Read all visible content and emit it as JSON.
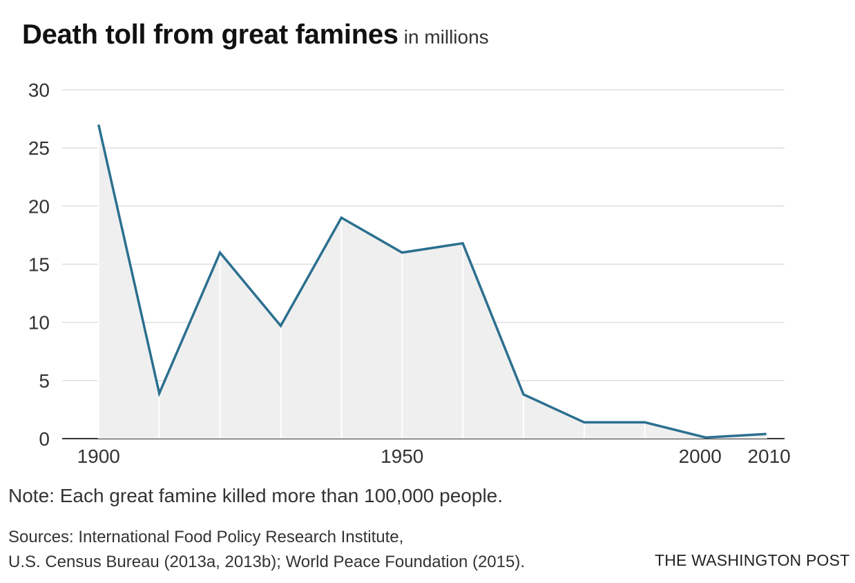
{
  "header": {
    "title": "Death toll from great famines",
    "subtitle": "in millions"
  },
  "footer": {
    "note": "Note: Each great famine killed more than 100,000 people.",
    "sources_line1": "Sources: International Food Policy Research Institute,",
    "sources_line2": "U.S. Census Bureau (2013a, 2013b); World Peace Foundation (2015).",
    "credit": "THE WASHINGTON POST"
  },
  "colors": {
    "line": "#2b6f8f",
    "area": "#efefef",
    "grid": "#dddddd",
    "baseline": "#333333"
  },
  "chart_data": {
    "type": "area",
    "title": "Death toll from great famines",
    "subtitle": "in millions",
    "xlabel": "",
    "ylabel": "",
    "x": [
      1900,
      1910,
      1920,
      1930,
      1940,
      1950,
      1960,
      1970,
      1980,
      1990,
      2000,
      2010
    ],
    "y": [
      27,
      3.9,
      16,
      9.7,
      19,
      16,
      16.8,
      3.8,
      1.4,
      1.4,
      0.1,
      0.4
    ],
    "xlim": [
      1894,
      2013
    ],
    "ylim": [
      0,
      30
    ],
    "x_ticks": [
      1900,
      1950,
      2000,
      2010
    ],
    "y_ticks": [
      0,
      5,
      10,
      15,
      20,
      25,
      30
    ],
    "grid": true,
    "legend": "none"
  }
}
